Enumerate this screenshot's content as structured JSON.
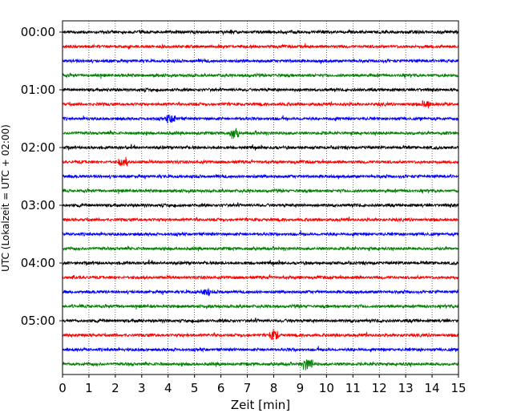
{
  "chart_data": {
    "type": "line",
    "title": "",
    "xlabel": "Zeit  [min]",
    "ylabel": "UTC (Lokalzeit = UTC + 02:00)",
    "xlim": [
      0,
      15
    ],
    "x_ticks": [
      0,
      1,
      2,
      3,
      4,
      5,
      6,
      7,
      8,
      9,
      10,
      11,
      12,
      13,
      14,
      15
    ],
    "y_tick_labels": [
      "00:00",
      "01:00",
      "02:00",
      "03:00",
      "04:00",
      "05:00"
    ],
    "trace_minutes": 15,
    "trace_count": 24,
    "traces_per_hour": 4,
    "trace_colors": [
      "#000000",
      "#ff0000",
      "#0000ff",
      "#008000"
    ],
    "grid": "vertical dotted lines at each minute",
    "series_description": "seismograph helicorder traces, one line per 15 minutes of recording"
  }
}
